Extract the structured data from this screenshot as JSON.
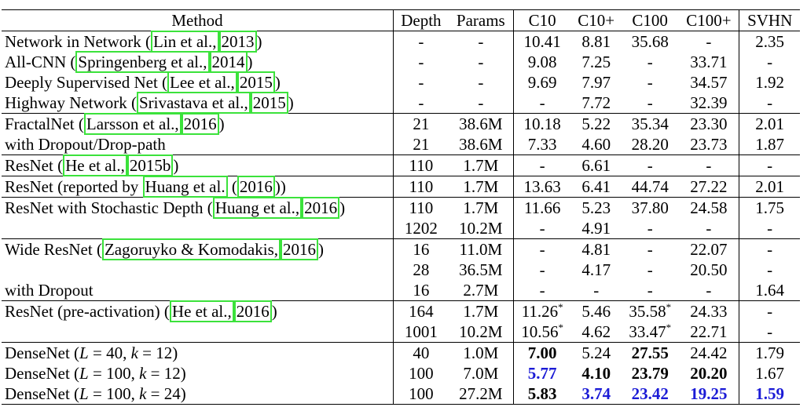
{
  "headers": {
    "method": "Method",
    "depth": "Depth",
    "params": "Params",
    "c10": "C10",
    "c10p": "C10+",
    "c100": "C100",
    "c100p": "C100+",
    "svhn": "SVHN"
  },
  "rows": [
    {
      "pre": "Network in Network (",
      "cite1": "Lin et al.,",
      "cite2": "2013",
      "post": ")",
      "depth": "-",
      "params": "-",
      "c10": "10.41",
      "c10p": "8.81",
      "c100": "35.68",
      "c100p": "-",
      "svhn": "2.35"
    },
    {
      "pre": "All-CNN (",
      "cite1": "Springenberg et al.,",
      "cite2": "2014",
      "post": ")",
      "depth": "-",
      "params": "-",
      "c10": "9.08",
      "c10p": "7.25",
      "c100": "-",
      "c100p": "33.71",
      "svhn": "-"
    },
    {
      "pre": "Deeply Supervised Net (",
      "cite1": "Lee et al.,",
      "cite2": "2015",
      "post": ")",
      "depth": "-",
      "params": "-",
      "c10": "9.69",
      "c10p": "7.97",
      "c100": "-",
      "c100p": "34.57",
      "svhn": "1.92"
    },
    {
      "pre": "Highway Network (",
      "cite1": "Srivastava et al.,",
      "cite2": "2015",
      "post": ")",
      "depth": "-",
      "params": "-",
      "c10": "-",
      "c10p": "7.72",
      "c100": "-",
      "c100p": "32.39",
      "svhn": "-"
    },
    {
      "pre": "FractalNet (",
      "cite1": "Larsson et al.,",
      "cite2": "2016",
      "post": ")",
      "depth": "21",
      "params": "38.6M",
      "c10": "10.18",
      "c10p": "5.22",
      "c100": "35.34",
      "c100p": "23.30",
      "svhn": "2.01"
    },
    {
      "pre": "with Dropout/Drop-path",
      "depth": "21",
      "params": "38.6M",
      "c10": "7.33",
      "c10p": "4.60",
      "c100": "28.20",
      "c100p": "23.73",
      "svhn": "1.87"
    },
    {
      "pre": "ResNet (",
      "cite1": "He et al.,",
      "cite2": "2015b",
      "post": ")",
      "depth": "110",
      "params": "1.7M",
      "c10": "-",
      "c10p": "6.61",
      "c100": "-",
      "c100p": "-",
      "svhn": "-"
    },
    {
      "pre": "ResNet (reported by ",
      "cite1": "Huang et al.",
      "mid": " (",
      "cite2": "2016",
      "post": "))",
      "depth": "110",
      "params": "1.7M",
      "c10": "13.63",
      "c10p": "6.41",
      "c100": "44.74",
      "c100p": "27.22",
      "svhn": "2.01"
    },
    {
      "pre": "ResNet with Stochastic Depth (",
      "cite1": "Huang et al.,",
      "cite2": "2016",
      "post": ")",
      "depth": "110",
      "params": "1.7M",
      "c10": "11.66",
      "c10p": "5.23",
      "c100": "37.80",
      "c100p": "24.58",
      "svhn": "1.75"
    },
    {
      "pre": "",
      "depth": "1202",
      "params": "10.2M",
      "c10": "-",
      "c10p": "4.91",
      "c100": "-",
      "c100p": "-",
      "svhn": "-"
    },
    {
      "pre": "Wide ResNet (",
      "cite1": "Zagoruyko & Komodakis,",
      "cite2": "2016",
      "post": ")",
      "depth": "16",
      "params": "11.0M",
      "c10": "-",
      "c10p": "4.81",
      "c100": "-",
      "c100p": "22.07",
      "svhn": "-"
    },
    {
      "pre": "",
      "depth": "28",
      "params": "36.5M",
      "c10": "-",
      "c10p": "4.17",
      "c100": "-",
      "c100p": "20.50",
      "svhn": "-"
    },
    {
      "pre": "with Dropout",
      "depth": "16",
      "params": "2.7M",
      "c10": "-",
      "c10p": "-",
      "c100": "-",
      "c100p": "-",
      "svhn": "1.64"
    },
    {
      "pre": "ResNet (pre-activation) (",
      "cite1": "He et al.,",
      "cite2": "2016",
      "post": ")",
      "depth": "164",
      "params": "1.7M",
      "c10": "11.26*",
      "c10p": "5.46",
      "c100": "35.58*",
      "c100p": "24.33",
      "svhn": "-"
    },
    {
      "pre": "",
      "depth": "1001",
      "params": "10.2M",
      "c10": "10.56*",
      "c10p": "4.62",
      "c100": "33.47*",
      "c100p": "22.71",
      "svhn": "-"
    },
    {
      "pre": "DenseNet (",
      "l": "L",
      "eq1": " = 40, ",
      "k": "k",
      "eq2": " = 12)",
      "depth": "40",
      "params": "1.0M",
      "c10": "7.00",
      "c10p": "5.24",
      "c100": "27.55",
      "c100p": "24.42",
      "svhn": "1.79"
    },
    {
      "pre": "DenseNet (",
      "l": "L",
      "eq1": " = 100, ",
      "k": "k",
      "eq2": " = 12)",
      "depth": "100",
      "params": "7.0M",
      "c10": "5.77",
      "c10p": "4.10",
      "c100": "23.79",
      "c100p": "20.20",
      "svhn": "1.67"
    },
    {
      "pre": "DenseNet (",
      "l": "L",
      "eq1": " = 100, ",
      "k": "k",
      "eq2": " = 24)",
      "depth": "100",
      "params": "27.2M",
      "c10": "5.83",
      "c10p": "3.74",
      "c100": "23.42",
      "c100p": "19.25",
      "svhn": "1.59"
    }
  ],
  "styles": {
    "citation_box_color": "#3be23b",
    "best_result_color": "#1b1bd6"
  }
}
